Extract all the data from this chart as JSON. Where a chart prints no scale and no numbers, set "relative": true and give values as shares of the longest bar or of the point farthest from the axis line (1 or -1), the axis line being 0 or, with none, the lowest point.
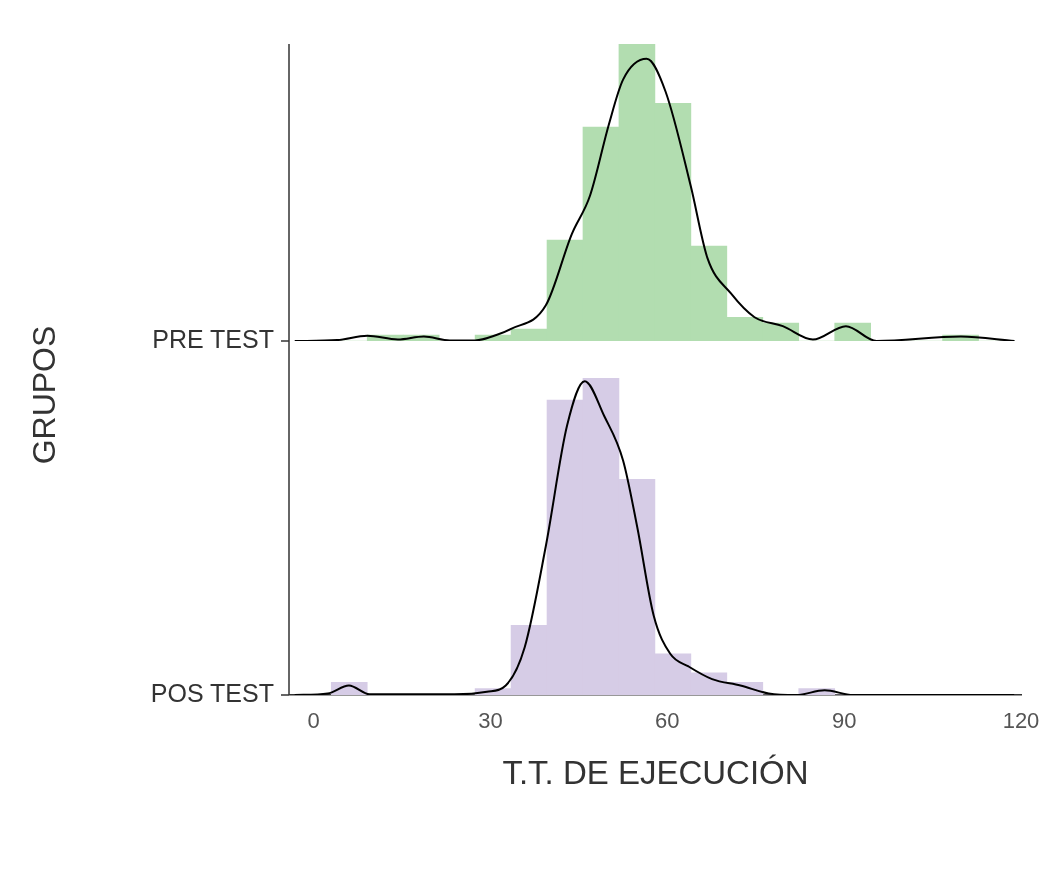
{
  "chart_data": [
    {
      "type": "histogram",
      "relative": true,
      "ylabel": "GRUPOS",
      "xlim": [
        -4,
        120
      ],
      "xticks": [
        0,
        30,
        60,
        90,
        120
      ],
      "tick_labels": false,
      "grid": false,
      "legend": false,
      "bins": [
        3.0,
        9.1,
        15.2,
        21.3,
        27.4,
        33.5,
        39.6,
        45.7,
        51.8,
        57.9,
        64.0,
        70.1,
        76.2,
        82.3,
        88.4,
        94.5,
        100.6,
        106.7,
        112.8,
        118.9
      ],
      "series": [
        {
          "name": "PRE TEST",
          "color": "#b2ddb0",
          "values": [
            0,
            0.02,
            0.02,
            0,
            0.02,
            0.04,
            0.34,
            0.72,
            1,
            0.8,
            0.32,
            0.08,
            0.06,
            0,
            0.06,
            0,
            0,
            0.02,
            0
          ]
        },
        {
          "type": "line",
          "color": "#000000",
          "x": [
            -3.2,
            4,
            9.1,
            14.3,
            18.7,
            23.1,
            27.4,
            31,
            33.4,
            39.4,
            43.8,
            46.9,
            50.1,
            52.5,
            56.5,
            59.7,
            64,
            66.8,
            70.8,
            74.8,
            79.6,
            84.7,
            90.3,
            95.5,
            109.8,
            118.9
          ],
          "values": [
            0,
            0.003,
            0.018,
            0.005,
            0.015,
            0.002,
            0.002,
            0.02,
            0.04,
            0.12,
            0.36,
            0.49,
            0.73,
            0.88,
            0.95,
            0.84,
            0.52,
            0.28,
            0.16,
            0.08,
            0.05,
            0.005,
            0.05,
            0,
            0.015,
            0
          ]
        }
      ]
    },
    {
      "type": "histogram",
      "relative": true,
      "xlabel": "T.T. DE EJECUCIÓN",
      "xlim": [
        -4,
        120
      ],
      "xticks": [
        0,
        30,
        60,
        90,
        120
      ],
      "tick_labels": "x",
      "grid": false,
      "legend": false,
      "bins": [
        3.0,
        9.1,
        15.2,
        21.3,
        27.4,
        33.5,
        39.6,
        45.7,
        51.8,
        57.9,
        64.0,
        70.1,
        76.2,
        82.3,
        88.4,
        94.5,
        100.6,
        106.7,
        112.8,
        118.9
      ],
      "series": [
        {
          "name": "POS TEST",
          "color": "#d6cce6",
          "values": [
            0.04,
            0,
            0,
            0,
            0.02,
            0.22,
            0.93,
            1,
            0.68,
            0.13,
            0.07,
            0.04,
            0,
            0.02,
            0,
            0,
            0,
            0,
            0
          ]
        },
        {
          "type": "line",
          "color": "#000000",
          "x": [
            -3.2,
            2.4,
            6,
            9.5,
            23.9,
            29.4,
            32.6,
            35.8,
            39.4,
            43,
            46,
            49.3,
            52.5,
            54.9,
            57.7,
            60.5,
            63.6,
            67.6,
            72.4,
            77.2,
            81.9,
            86.7,
            91.5,
            118.9
          ],
          "values": [
            0,
            0.005,
            0.03,
            0.002,
            0.002,
            0.01,
            0.03,
            0.15,
            0.47,
            0.85,
            0.99,
            0.88,
            0.74,
            0.53,
            0.25,
            0.13,
            0.09,
            0.05,
            0.03,
            0.005,
            0,
            0.015,
            0,
            0
          ]
        }
      ]
    }
  ]
}
